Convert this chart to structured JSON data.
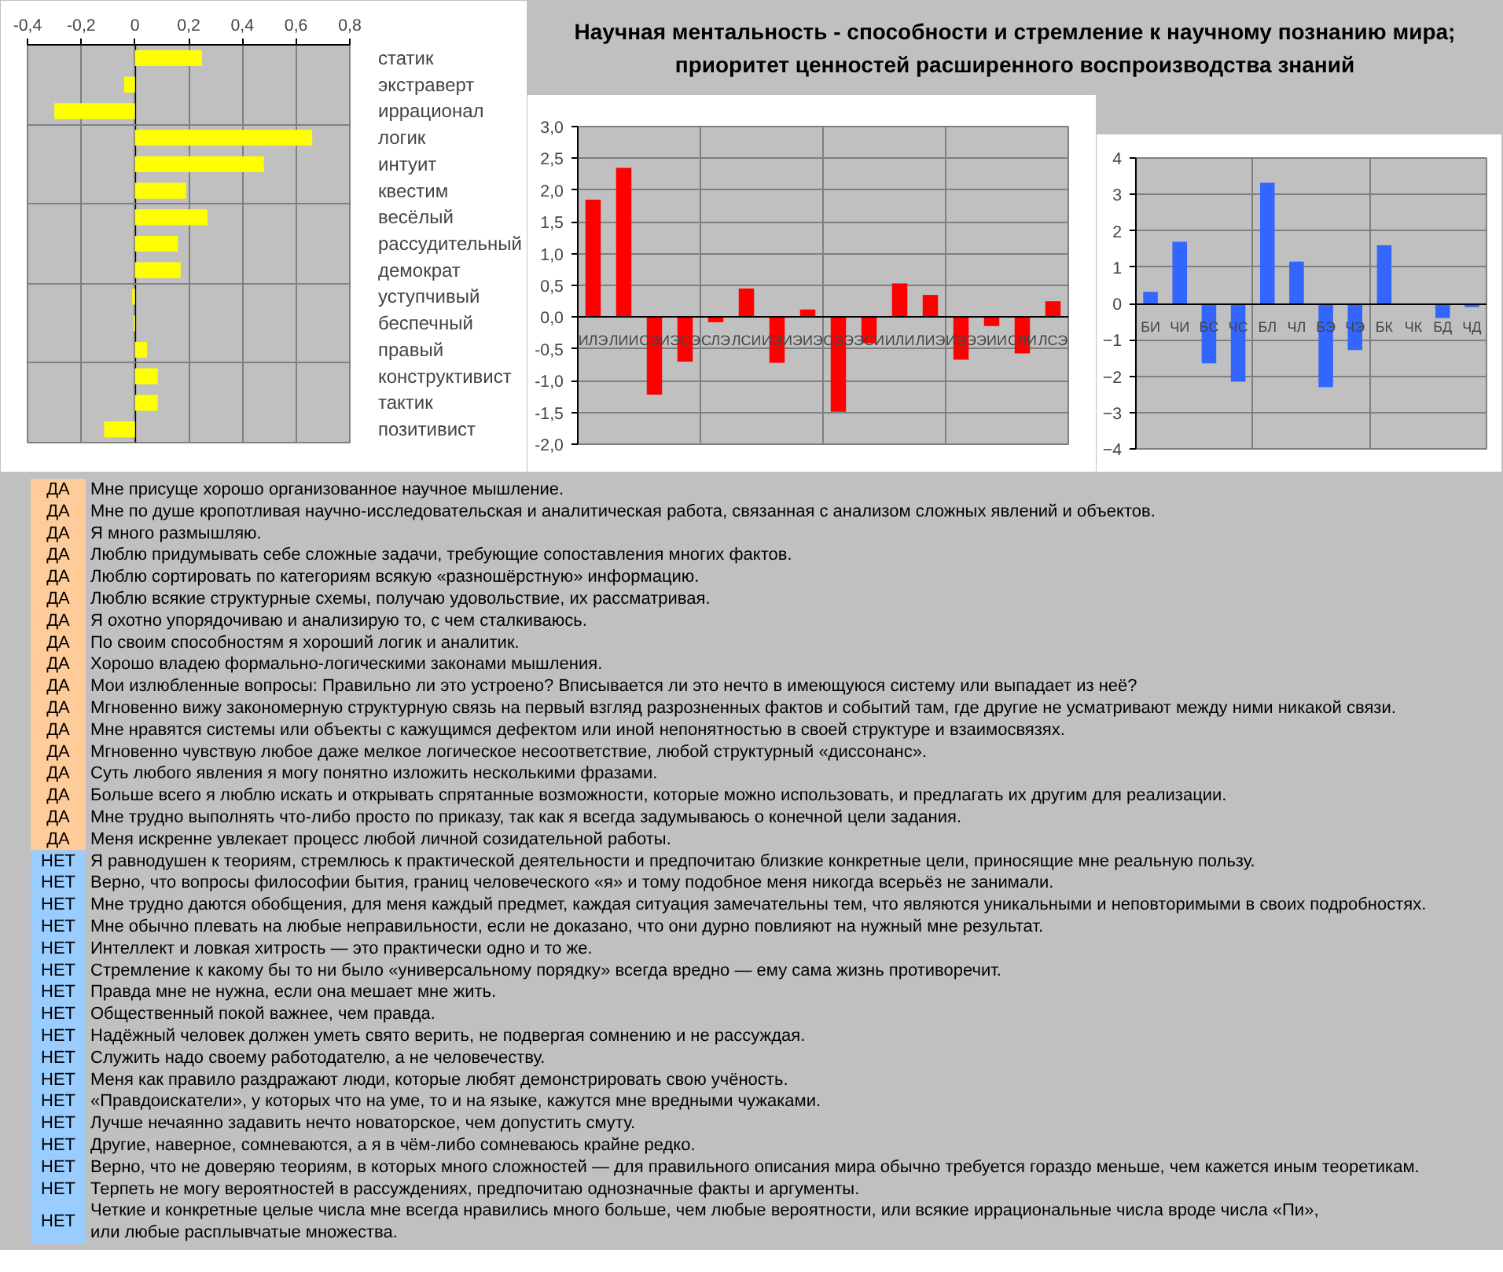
{
  "chart_data": [
    {
      "type": "bar",
      "orientation": "horizontal",
      "categories": [
        "статик",
        "экстраверт",
        "иррационал",
        "логик",
        "интуит",
        "квестим",
        "весёлый",
        "рассудительный",
        "демократ",
        "уступчивый",
        "беспечный",
        "правый",
        "конструктивист",
        "тактик",
        "позитивист"
      ],
      "values": [
        0.25,
        -0.04,
        -0.3,
        0.66,
        0.48,
        0.19,
        0.27,
        0.16,
        0.17,
        -0.01,
        -0.005,
        0.045,
        0.085,
        0.085,
        -0.115
      ],
      "color": "#ffff00",
      "xlim": [
        -0.4,
        0.8
      ],
      "xticks": [
        {
          "value": -0.4,
          "label": "-0,4"
        },
        {
          "value": -0.2,
          "label": "-0,2"
        },
        0,
        {
          "value": 0.2,
          "label": "0,2"
        },
        {
          "value": 0.4,
          "label": "0,4"
        },
        {
          "value": 0.6,
          "label": "0,6"
        },
        {
          "value": 0.8,
          "label": "0,8"
        }
      ],
      "grid": true
    },
    {
      "type": "bar",
      "categories": [
        "ИЛЭ",
        "ЛИИ",
        "СЭИ",
        "ЭСЭ",
        "СЛЭ",
        "ЛСИ",
        "ИЭИ",
        "ЭИЭ",
        "СЭЭ",
        "ЭСИ",
        "ИЛИ",
        "ЛИЭ",
        "ИЭЭ",
        "ЭИИ",
        "СЛИ",
        "ЛСЭ"
      ],
      "values": [
        1.85,
        2.35,
        -1.22,
        -0.7,
        -0.08,
        0.45,
        -0.72,
        0.12,
        -1.49,
        -0.41,
        0.53,
        0.35,
        -0.67,
        -0.14,
        -0.57,
        0.25
      ],
      "color": "#ff0000",
      "ylim": [
        -2,
        3
      ],
      "yticks": [
        {
          "value": -2,
          "label": "-2,0"
        },
        {
          "value": -1.5,
          "label": "-1,5"
        },
        {
          "value": -1,
          "label": "-1,0"
        },
        {
          "value": -0.5,
          "label": "-0,5"
        },
        {
          "value": 0,
          "label": "0,0"
        },
        {
          "value": 0.5,
          "label": "0,5"
        },
        {
          "value": 1,
          "label": "1,0"
        },
        {
          "value": 1.5,
          "label": "1,5"
        },
        {
          "value": 2,
          "label": "2,0"
        },
        {
          "value": 2.5,
          "label": "2,5"
        },
        {
          "value": 3,
          "label": "3,0"
        }
      ],
      "grid": true
    },
    {
      "type": "bar",
      "categories": [
        "БИ",
        "ЧИ",
        "БС",
        "ЧС",
        "БЛ",
        "ЧЛ",
        "БЭ",
        "ЧЭ",
        "БК",
        "ЧК",
        "БД",
        "ЧД"
      ],
      "values": [
        0.32,
        1.7,
        -1.65,
        -2.15,
        3.32,
        1.15,
        -2.3,
        -1.28,
        1.6,
        0,
        -0.4,
        -0.1
      ],
      "color": "#3366ff",
      "ylim": [
        -4,
        4
      ],
      "yticks": [
        -4,
        -3,
        -2,
        -1,
        0,
        1,
        2,
        3,
        4
      ],
      "grid": true
    },
    {
      "type": "other",
      "title": "Научная ментальность - способности и стремление к научному познанию мира;\nприоритет ценностей расширенного воспроизводства знаний"
    },
    {
      "type": "other",
      "categories": [
        "ДА",
        "ДА",
        "ДА",
        "ДА",
        "ДА",
        "ДА",
        "ДА",
        "ДА",
        "ДА",
        "ДА",
        "ДА",
        "ДА",
        "ДА",
        "ДА",
        "ДА",
        "ДА",
        "ДА",
        "НЕТ",
        "НЕТ",
        "НЕТ",
        "НЕТ",
        "НЕТ",
        "НЕТ",
        "НЕТ",
        "НЕТ",
        "НЕТ",
        "НЕТ",
        "НЕТ",
        "НЕТ",
        "НЕТ",
        "НЕТ",
        "НЕТ",
        "НЕТ",
        "НЕТ"
      ],
      "colors": [
        "#ffcc99",
        "#ffcc99",
        "#ffcc99",
        "#ffcc99",
        "#ffcc99",
        "#ffcc99",
        "#ffcc99",
        "#ffcc99",
        "#ffcc99",
        "#ffcc99",
        "#ffcc99",
        "#ffcc99",
        "#ffcc99",
        "#ffcc99",
        "#ffcc99",
        "#ffcc99",
        "#ffcc99",
        "#99ccff",
        "#99ccff",
        "#99ccff",
        "#99ccff",
        "#99ccff",
        "#99ccff",
        "#99ccff",
        "#99ccff",
        "#99ccff",
        "#99ccff",
        "#99ccff",
        "#99ccff",
        "#99ccff",
        "#99ccff",
        "#99ccff",
        "#99ccff",
        "#99ccff"
      ],
      "annotations": [
        "Мне присуще хорошо организованное научное мышление.",
        "Мне по душе кропотливая научно-исследовательская и аналитическая работа, связанная с анализом сложных явлений и объектов.",
        "Я много размышляю.",
        "Люблю придумывать себе сложные задачи, требующие сопоставления многих фактов.",
        "Люблю сортировать по категориям всякую «разношёрстную» информацию.",
        "Люблю всякие структурные схемы, получаю удовольствие, их рассматривая.",
        "Я охотно упорядочиваю и анализирую то, с чем сталкиваюсь.",
        "По своим способностям я хороший логик и аналитик.",
        "Хорошо владею формально-логическими законами мышления.",
        "Мои излюбленные вопросы: Правильно ли это устроено? Вписывается ли это нечто в имеющуюся систему или выпадает из неё?",
        "Мгновенно вижу закономерную структурную связь на первый взгляд разрозненных фактов и событий там, где другие не усматривают между ними никакой связи.",
        "Мне нравятся системы или объекты с кажущимся дефектом или иной непонятностью в своей структуре и взаимосвязях.",
        "Мгновенно чувствую любое даже мелкое логическое несоответствие, любой структурный «диссонанс».",
        "Суть любого явления я могу понятно изложить несколькими фразами.",
        "Больше всего я люблю искать и открывать спрятанные возможности, которые можно использовать, и предлагать их другим для реализации.",
        "Мне трудно выполнять что-либо просто по приказу, так как я всегда задумываюсь о конечной цели задания.",
        "Меня искренне увлекает процесс любой личной созидательной работы.",
        "Я равнодушен к теориям, стремлюсь к практической деятельности и предпочитаю близкие конкретные цели, приносящие мне реальную пользу.",
        "Верно, что вопросы философии бытия, границ человеческого «я» и тому подобное меня никогда всерьёз не занимали.",
        "Мне трудно даются обобщения, для меня каждый предмет, каждая ситуация замечательны тем, что являются уникальными и неповторимыми в своих подробностях.",
        "Мне обычно плевать на любые неправильности, если не доказано, что они дурно повлияют на нужный мне результат.",
        "Интеллект и ловкая хитрость — это практически одно и то же.",
        "Стремление к какому бы то ни было «универсальному порядку» всегда вредно — ему сама жизнь противоречит.",
        "Правда мне не нужна, если она мешает мне жить.",
        "Общественный покой важнее, чем правда.",
        "Надёжный человек должен уметь свято верить, не подвергая сомнению и не рассуждая.",
        "Служить надо своему работодателю, а не человечеству.",
        "Меня как правило раздражают люди, которые любят демонстрировать свою учёность.",
        "«Правдоискатели», у которых что на уме, то и на языке, кажутся мне вредными чужаками.",
        "Лучше нечаянно задавить нечто новаторское, чем допустить смуту.",
        "Другие, наверное, сомневаются, а я в чём-либо сомневаюсь крайне редко.",
        "Верно, что не доверяю теориям, в которых много сложностей — для правильного описания мира обычно требуется гораздо меньше, чем кажется иным теоретикам.",
        "Терпеть не могу вероятностей в рассуждениях, предпочитаю однозначные факты и аргументы.",
        "Четкие и конкретные целые числа мне всегда нравились много больше, чем любые вероятности, или всякие иррациональные числа вроде числа «Пи»,\n или любые расплывчатые множества."
      ]
    }
  ]
}
